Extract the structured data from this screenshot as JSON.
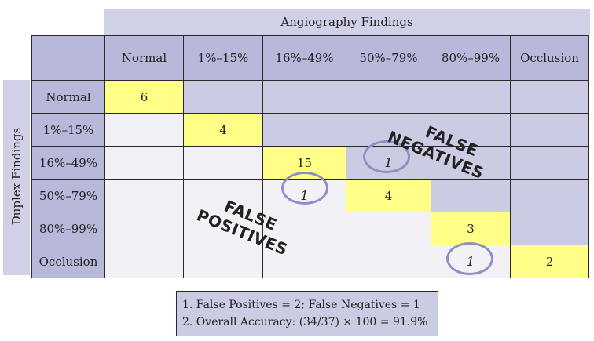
{
  "top_label": "Angiography Findings",
  "side_label": "Duplex Findings",
  "columns": [
    "Normal",
    "1%–15%",
    "16%–49%",
    "50%–79%",
    "80%–99%",
    "Occlusion"
  ],
  "rows": [
    "Normal",
    "1%–15%",
    "16%–49%",
    "50%–79%",
    "80%–99%",
    "Occlusion"
  ],
  "diagonal_values": [
    "6",
    "4",
    "15",
    "4",
    "3",
    "2"
  ],
  "false_negative_cell": "1",
  "false_positive_cell": "1",
  "occlusion_row_cell": "1",
  "stamp_false_negatives": [
    "FALSE",
    "NEGATIVES"
  ],
  "stamp_false_positives": [
    "FALSE",
    "POSITIVES"
  ],
  "notes": [
    "1.  False Positives = 2; False Negatives = 1",
    "2.  Overall Accuracy: (34/37) × 100 = 91.9%"
  ],
  "colors": {
    "header": "#b8b8db",
    "upper_cells": "#cbcbe3",
    "lower_cells": "#f2f2f6",
    "diagonal": "#ffff88",
    "circle": "#8f8fc6"
  }
}
